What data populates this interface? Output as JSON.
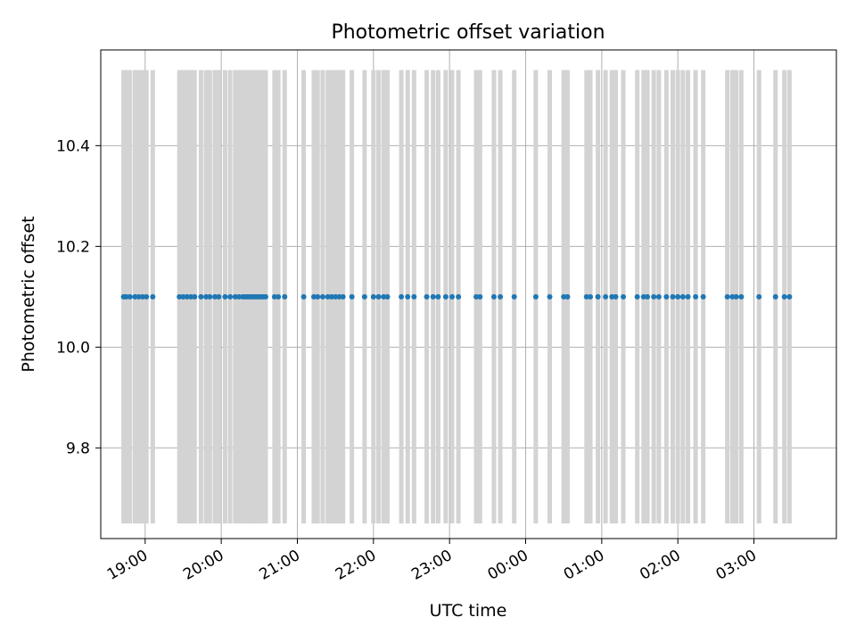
{
  "chart_data": {
    "type": "scatter",
    "title": "Photometric offset variation",
    "xlabel": "UTC time",
    "ylabel": "Photometric offset",
    "xlim": [
      "18:25",
      "28:05"
    ],
    "ylim": [
      9.62,
      10.59
    ],
    "yticks": [
      {
        "value": 9.8,
        "label": "9.8"
      },
      {
        "value": 10.0,
        "label": "10.0"
      },
      {
        "value": 10.2,
        "label": "10.2"
      },
      {
        "value": 10.4,
        "label": "10.4"
      }
    ],
    "xticks": [
      {
        "value": "19:00",
        "label": "19:00"
      },
      {
        "value": "20:00",
        "label": "20:00"
      },
      {
        "value": "21:00",
        "label": "21:00"
      },
      {
        "value": "22:00",
        "label": "22:00"
      },
      {
        "value": "23:00",
        "label": "23:00"
      },
      {
        "value": "24:00",
        "label": "00:00"
      },
      {
        "value": "25:00",
        "label": "01:00"
      },
      {
        "value": "26:00",
        "label": "02:00"
      },
      {
        "value": "27:00",
        "label": "03:00"
      }
    ],
    "grid": true,
    "error_bar_range": [
      9.65,
      10.55
    ],
    "series": [
      {
        "color": "#1f77b4",
        "bar_color": "#d3d3d3",
        "y": 10.1,
        "times": [
          "18:43",
          "18:45",
          "18:48",
          "18:52",
          "18:55",
          "18:58",
          "19:01",
          "19:06",
          "19:27",
          "19:30",
          "19:33",
          "19:36",
          "19:39",
          "19:44",
          "19:48",
          "19:51",
          "19:55",
          "19:58",
          "20:03",
          "20:07",
          "20:11",
          "20:14",
          "20:17",
          "20:19",
          "20:21",
          "20:23",
          "20:25",
          "20:27",
          "20:29",
          "20:31",
          "20:33",
          "20:35",
          "20:42",
          "20:45",
          "20:50",
          "21:05",
          "21:13",
          "21:16",
          "21:20",
          "21:24",
          "21:27",
          "21:30",
          "21:33",
          "21:36",
          "21:43",
          "21:53",
          "22:00",
          "22:04",
          "22:08",
          "22:11",
          "22:22",
          "22:27",
          "22:32",
          "22:42",
          "22:47",
          "22:51",
          "22:57",
          "23:02",
          "23:07",
          "23:21",
          "23:24",
          "23:35",
          "23:40",
          "23:51",
          "24:08",
          "24:19",
          "24:30",
          "24:33",
          "24:48",
          "24:51",
          "24:57",
          "25:03",
          "25:08",
          "25:11",
          "25:17",
          "25:28",
          "25:33",
          "25:36",
          "25:41",
          "25:45",
          "25:51",
          "25:56",
          "26:00",
          "26:04",
          "26:08",
          "26:14",
          "26:20",
          "26:39",
          "26:43",
          "26:46",
          "26:50",
          "27:04",
          "27:17",
          "27:24",
          "27:28"
        ]
      }
    ]
  }
}
